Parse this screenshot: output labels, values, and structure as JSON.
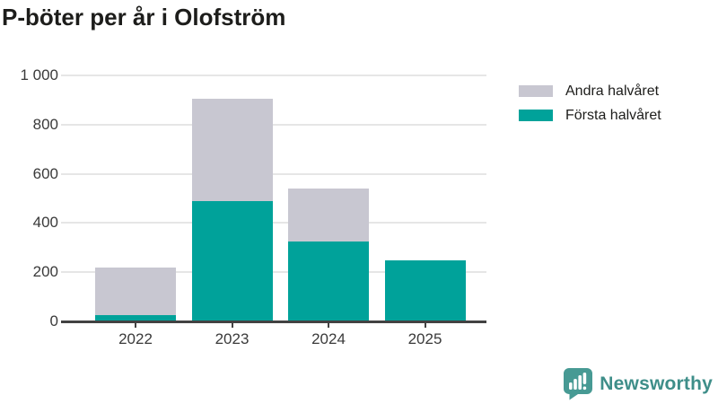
{
  "title": "P-böter per år i Olofström",
  "legend": [
    {
      "label": "Andra halvåret",
      "color": "#c8c7d1"
    },
    {
      "label": "Första halvåret",
      "color": "#00a29a"
    }
  ],
  "chart_data": {
    "type": "bar",
    "stacked": true,
    "title": "P-böter per år i Olofström",
    "categories": [
      "2022",
      "2023",
      "2024",
      "2025"
    ],
    "series": [
      {
        "name": "Första halvåret",
        "color": "#00a29a",
        "values": [
          25,
          490,
          325,
          250
        ]
      },
      {
        "name": "Andra halvåret",
        "color": "#c8c7d1",
        "values": [
          195,
          415,
          215,
          0
        ]
      }
    ],
    "totals": [
      220,
      905,
      540,
      250
    ],
    "xlabel": "",
    "ylabel": "",
    "ylim": [
      0,
      1000
    ],
    "yticks": [
      0,
      200,
      400,
      600,
      800,
      1000
    ],
    "ytick_labels": [
      "0",
      "200",
      "400",
      "600",
      "800",
      "1 000"
    ],
    "grid": true,
    "legend_position": "right"
  },
  "branding": {
    "logo_text": "Newsworthy",
    "logo_text_color": "#3e8e89",
    "logo_icon_color": "#479a94",
    "logo_icon": "newsworthy-speech-bubble-bar-chart-icon"
  }
}
